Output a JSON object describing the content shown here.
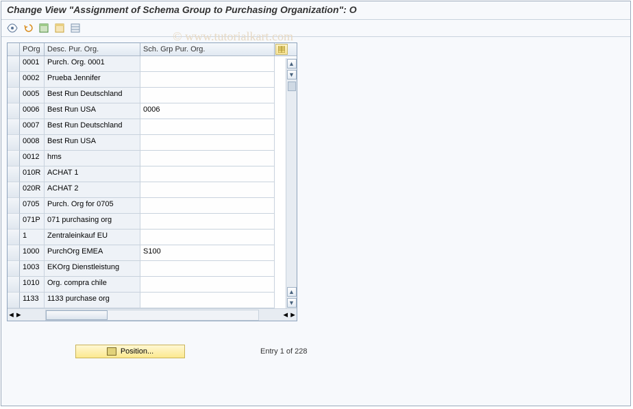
{
  "window": {
    "title": "Change View \"Assignment of Schema Group to Purchasing Organization\": O"
  },
  "watermark": "© www.tutorialkart.com",
  "toolbar": {
    "glasses_icon": "toggle-display",
    "undo_icon": "undo",
    "select_all_icon": "select-all",
    "deselect_icon": "deselect-all",
    "table_settings_icon": "table-settings"
  },
  "grid": {
    "columns": {
      "porg": "POrg",
      "desc": "Desc. Pur. Org.",
      "schg": "Sch. Grp Pur. Org."
    },
    "rows": [
      {
        "porg": "0001",
        "desc": "Purch. Org. 0001",
        "schg": ""
      },
      {
        "porg": "0002",
        "desc": "Prueba Jennifer",
        "schg": ""
      },
      {
        "porg": "0005",
        "desc": "Best Run Deutschland",
        "schg": ""
      },
      {
        "porg": "0006",
        "desc": "Best Run USA",
        "schg": "0006"
      },
      {
        "porg": "0007",
        "desc": "Best Run Deutschland",
        "schg": ""
      },
      {
        "porg": "0008",
        "desc": "Best Run USA",
        "schg": ""
      },
      {
        "porg": "0012",
        "desc": "hms",
        "schg": ""
      },
      {
        "porg": "010R",
        "desc": "ACHAT 1",
        "schg": ""
      },
      {
        "porg": "020R",
        "desc": "ACHAT 2",
        "schg": ""
      },
      {
        "porg": "0705",
        "desc": "Purch. Org for 0705",
        "schg": ""
      },
      {
        "porg": "071P",
        "desc": "071 purchasing org",
        "schg": ""
      },
      {
        "porg": "1",
        "desc": "Zentraleinkauf EU",
        "schg": ""
      },
      {
        "porg": "1000",
        "desc": "PurchOrg EMEA",
        "schg": "S100"
      },
      {
        "porg": "1003",
        "desc": "EKOrg Dienstleistung",
        "schg": ""
      },
      {
        "porg": "1010",
        "desc": "Org. compra chile",
        "schg": ""
      },
      {
        "porg": "1133",
        "desc": "1133 purchase org",
        "schg": ""
      }
    ]
  },
  "footer": {
    "position_label": "Position...",
    "entry_text": "Entry 1 of 228"
  },
  "colors": {
    "header_grad_top": "#f5f8fb",
    "header_grad_bottom": "#e1e9f2",
    "border": "#8ea3bc",
    "btn_yellow_top": "#fff8d4",
    "btn_yellow_bottom": "#fbe88e"
  }
}
